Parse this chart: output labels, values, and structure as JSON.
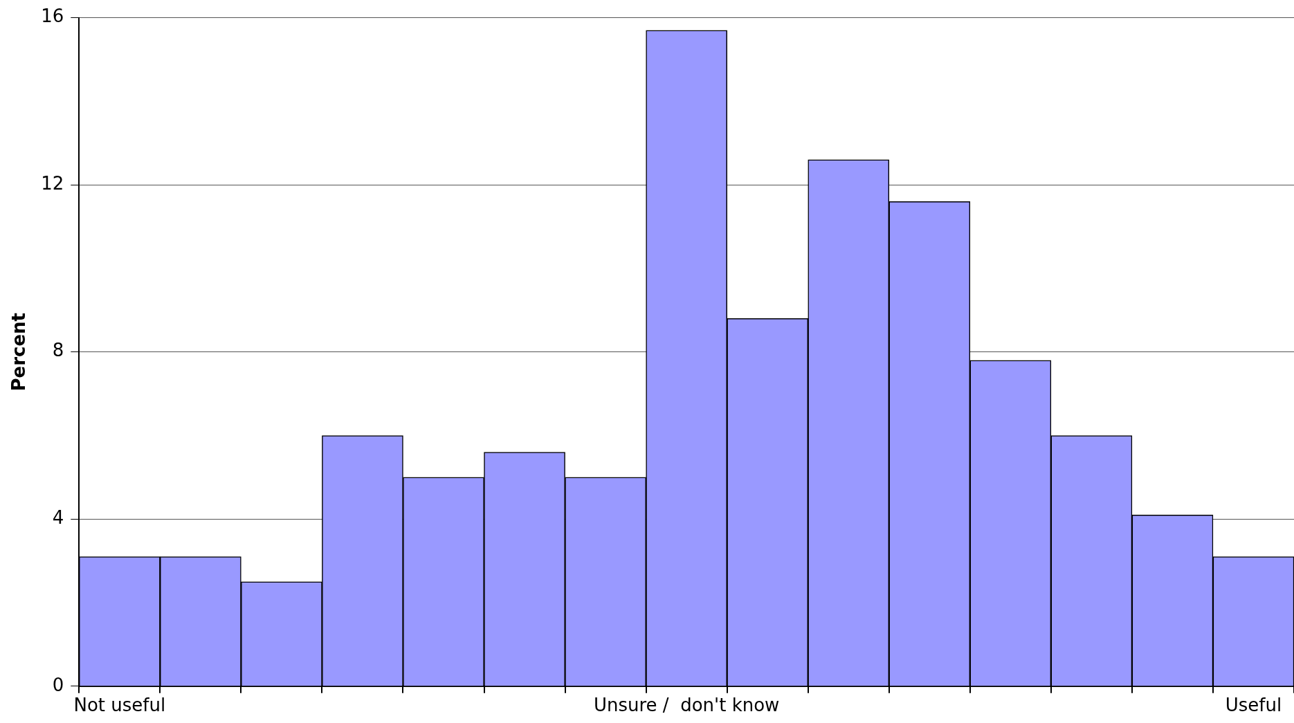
{
  "chart_data": {
    "type": "bar",
    "ylabel": "Percent",
    "categories": [
      "Not useful",
      null,
      null,
      null,
      null,
      null,
      null,
      "Unsure /  don't know",
      null,
      null,
      null,
      null,
      null,
      null,
      "Useful"
    ],
    "values": [
      3.1,
      3.1,
      2.5,
      6.0,
      5.0,
      5.6,
      5.0,
      15.7,
      8.8,
      12.6,
      11.6,
      7.8,
      6.0,
      4.1,
      3.1
    ],
    "color": "#9999ff",
    "ylim": [
      0,
      16
    ],
    "yticks": [
      0,
      4,
      8,
      12,
      16
    ],
    "grid": "y",
    "legend": false
  }
}
